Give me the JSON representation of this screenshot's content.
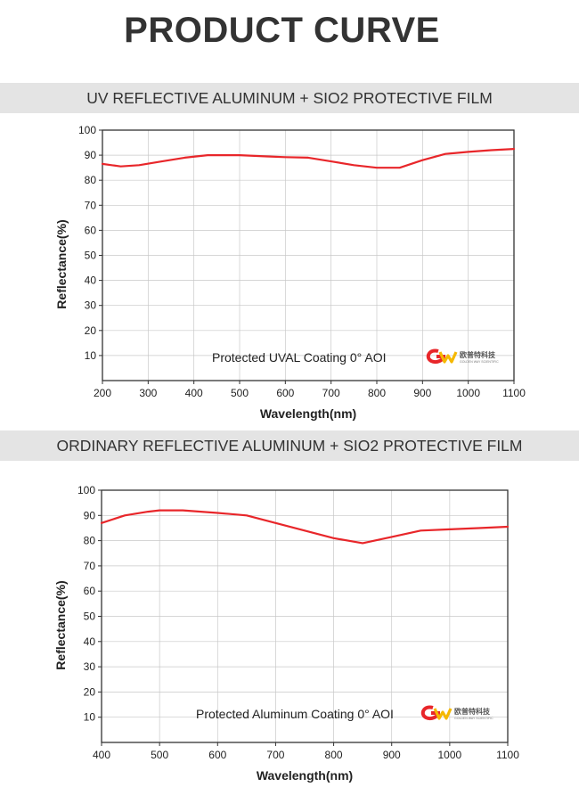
{
  "page": {
    "title": "PRODUCT CURVE"
  },
  "colors": {
    "curve": "#e8262a",
    "band": "#e4e4e4",
    "grid": "#c8c8c8",
    "logo_red": "#e8262a",
    "logo_yellow": "#f5b800"
  },
  "logo": {
    "mark": "GW",
    "cn": "欧普特科技",
    "en": "GOLDEN WAY SCIENTIFIC"
  },
  "sections": [
    {
      "heading": "UV REFLECTIVE ALUMINUM + SIO2 PROTECTIVE FILM"
    },
    {
      "heading": "ORDINARY REFLECTIVE ALUMINUM + SIO2 PROTECTIVE FILM"
    }
  ],
  "chart_data": [
    {
      "type": "line",
      "title": "",
      "xlabel": "Wavelength(nm)",
      "ylabel": "Reflectance(%)",
      "xlim": [
        200,
        1100
      ],
      "ylim": [
        0,
        100
      ],
      "xticks": [
        200,
        300,
        400,
        500,
        600,
        700,
        800,
        900,
        1000,
        1100
      ],
      "yticks": [
        10,
        20,
        30,
        40,
        50,
        60,
        70,
        80,
        90,
        100
      ],
      "grid": true,
      "annotation": "Protected UVAL Coating  0°  AOI",
      "series": [
        {
          "x": [
            200,
            240,
            280,
            330,
            380,
            430,
            500,
            560,
            600,
            650,
            700,
            750,
            800,
            850,
            900,
            950,
            1000,
            1050,
            1100
          ],
          "values": [
            86.5,
            85.5,
            86,
            87.5,
            89,
            90,
            90,
            89.5,
            89.2,
            89,
            87.5,
            86,
            85,
            85,
            88,
            90.5,
            91.3,
            92,
            92.5
          ]
        }
      ]
    },
    {
      "type": "line",
      "title": "",
      "xlabel": "Wavelength(nm)",
      "ylabel": "Reflectance(%)",
      "xlim": [
        400,
        1100
      ],
      "ylim": [
        0,
        100
      ],
      "xticks": [
        400,
        500,
        600,
        700,
        800,
        900,
        1000,
        1100
      ],
      "yticks": [
        10,
        20,
        30,
        40,
        50,
        60,
        70,
        80,
        90,
        100
      ],
      "grid": true,
      "annotation": "Protected Aluminum Coating  0°  AOI",
      "series": [
        {
          "x": [
            400,
            440,
            480,
            500,
            540,
            600,
            650,
            700,
            750,
            800,
            850,
            900,
            950,
            1000,
            1050,
            1100
          ],
          "values": [
            87,
            90,
            91.5,
            92,
            92,
            91,
            90,
            87,
            84,
            81,
            79,
            81.5,
            84,
            84.5,
            85,
            85.5
          ]
        }
      ]
    }
  ]
}
